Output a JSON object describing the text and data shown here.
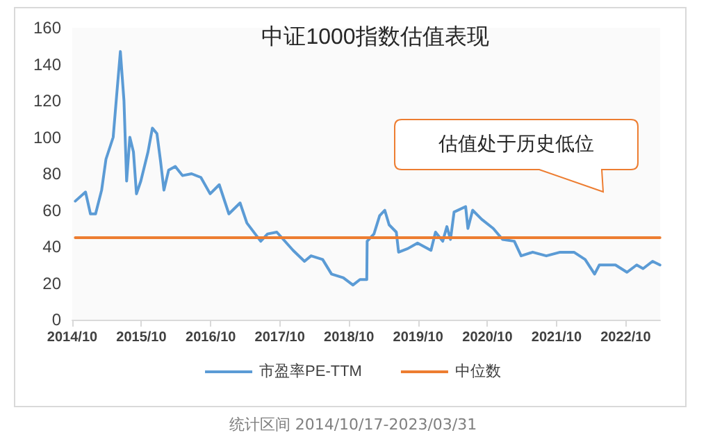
{
  "chart_data": {
    "type": "line",
    "title": "中证1000指数估值表现",
    "annotations": [
      "估值处于历史低位",
      "统计区间 2014/10/17-2023/03/31"
    ],
    "xlim": [
      "2014-10-01",
      "2023-04-01"
    ],
    "xticks": [
      {
        "value": "2014-10",
        "label": "2014/10"
      },
      {
        "value": "2015-10",
        "label": "2015/10"
      },
      {
        "value": "2016-10",
        "label": "2016/10"
      },
      {
        "value": "2017-10",
        "label": "2017/10"
      },
      {
        "value": "2018-10",
        "label": "2018/10"
      },
      {
        "value": "2019-10",
        "label": "2019/10"
      },
      {
        "value": "2020-10",
        "label": "2020/10"
      },
      {
        "value": "2021-10",
        "label": "2021/10"
      },
      {
        "value": "2022-10",
        "label": "2022/10"
      }
    ],
    "ylim": [
      0,
      160
    ],
    "yticks": [
      0,
      20,
      40,
      60,
      80,
      100,
      120,
      140,
      160
    ],
    "grid": false,
    "legend": "bottom",
    "marker": "none",
    "line_style": "solid",
    "series": [
      {
        "name": "市盈率PE-TTM",
        "color": "#5b9bd5",
        "x": [
          "2014-10-17",
          "2014-12-10",
          "2015-01-05",
          "2015-02-01",
          "2015-03-05",
          "2015-03-28",
          "2015-05-05",
          "2015-05-25",
          "2015-06-12",
          "2015-07-01",
          "2015-07-15",
          "2015-08-01",
          "2015-08-20",
          "2015-09-05",
          "2015-09-28",
          "2015-11-05",
          "2015-11-28",
          "2015-12-22",
          "2016-01-10",
          "2016-01-28",
          "2016-02-22",
          "2016-03-28",
          "2016-05-05",
          "2016-06-22",
          "2016-08-10",
          "2016-09-28",
          "2016-11-15",
          "2017-01-05",
          "2017-03-05",
          "2017-04-10",
          "2017-06-22",
          "2017-07-28",
          "2017-09-15",
          "2017-12-10",
          "2018-02-08",
          "2018-03-15",
          "2018-05-15",
          "2018-07-01",
          "2018-09-01",
          "2018-10-22",
          "2018-11-28",
          "2019-01-03",
          "2019-01-05",
          "2019-02-10",
          "2019-03-12",
          "2019-04-08",
          "2019-05-01",
          "2019-06-08",
          "2019-06-20",
          "2019-08-08",
          "2019-09-28",
          "2019-12-08",
          "2020-01-01",
          "2020-02-08",
          "2020-03-01",
          "2020-03-20",
          "2020-04-08",
          "2020-06-08",
          "2020-06-20",
          "2020-07-15",
          "2020-09-01",
          "2020-11-01",
          "2020-12-20",
          "2021-02-20",
          "2021-03-28",
          "2021-05-28",
          "2021-08-08",
          "2021-10-20",
          "2022-01-01",
          "2022-03-01",
          "2022-04-20",
          "2022-05-15",
          "2022-08-08",
          "2022-10-08",
          "2022-11-28",
          "2023-01-01",
          "2023-02-20",
          "2023-03-31"
        ],
        "values": [
          65,
          70,
          58,
          58,
          71,
          88,
          100,
          125,
          147,
          120,
          76,
          100,
          92,
          69,
          76,
          92,
          105,
          102,
          87,
          71,
          82,
          84,
          79,
          80,
          78,
          69,
          74,
          58,
          64,
          53,
          43,
          47,
          48,
          38,
          32,
          35,
          33,
          25,
          23,
          19,
          22,
          22,
          43,
          47,
          57,
          60,
          52,
          48,
          37,
          39,
          42,
          38,
          48,
          43,
          51,
          44,
          59,
          62,
          50,
          60,
          55,
          50,
          44,
          43,
          35,
          37,
          35,
          37,
          37,
          33,
          25,
          30,
          30,
          26,
          30,
          28,
          32,
          30
        ]
      },
      {
        "name": "中位数",
        "color": "#ed7d31",
        "x": [
          "2014-10-17",
          "2023-03-31"
        ],
        "values": [
          45,
          45
        ]
      }
    ]
  }
}
